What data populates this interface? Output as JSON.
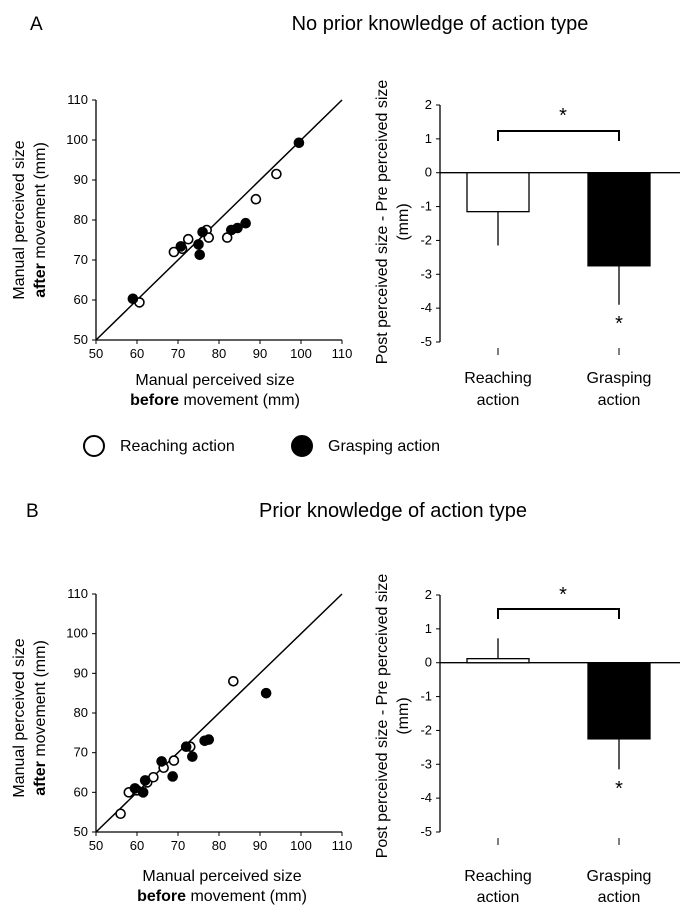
{
  "panels": [
    {
      "letter": "A",
      "title": "No prior knowledge of action type",
      "scatter": {
        "xlabel_line1": "Manual perceived size",
        "xlabel_bold": "before",
        "xlabel_rest": " movement (mm)",
        "ylabel_line1": "Manual perceived size",
        "ylabel_bold": "after",
        "ylabel_rest": " movement (mm)"
      },
      "bars": {
        "ylabel_line1": "Post perceived size - Pre perceived size",
        "ylabel_line2": "(mm)",
        "cat1_line1": "Reaching",
        "cat1_line2": "action",
        "cat2_line1": "Grasping",
        "cat2_line2": "action",
        "sig_bracket": "*",
        "sig_grasp": "*"
      }
    },
    {
      "letter": "B",
      "title": "Prior knowledge of action type",
      "scatter": {
        "xlabel_line1": "Manual perceived size",
        "xlabel_bold": "before",
        "xlabel_rest": " movement (mm)",
        "ylabel_line1": "Manual perceived size",
        "ylabel_bold": "after",
        "ylabel_rest": " movement (mm)"
      },
      "bars": {
        "ylabel_line1": "Post perceived size - Pre perceived size",
        "ylabel_line2": "(mm)",
        "cat1_line1": "Reaching",
        "cat1_line2": "action",
        "cat2_line1": "Grasping",
        "cat2_line2": "action",
        "sig_bracket": "*",
        "sig_grasp": "*"
      }
    }
  ],
  "legend": {
    "reaching": "Reaching action",
    "grasping": "Grasping action"
  },
  "chart_data": [
    {
      "type": "scatter",
      "panel": "A",
      "xlim": [
        50,
        110
      ],
      "ylim": [
        50,
        110
      ],
      "xticks": [
        50,
        60,
        70,
        80,
        90,
        100,
        110
      ],
      "yticks": [
        50,
        60,
        70,
        80,
        90,
        100,
        110
      ],
      "identity_line": true,
      "series": [
        {
          "name": "Reaching action",
          "style": "open",
          "points": [
            [
              60.6,
              59.4
            ],
            [
              69,
              72
            ],
            [
              71,
              72.8
            ],
            [
              72.5,
              75.2
            ],
            [
              77,
              77.5
            ],
            [
              77.5,
              75.6
            ],
            [
              82,
              75.6
            ],
            [
              89,
              85.2
            ],
            [
              94,
              91.5
            ]
          ]
        },
        {
          "name": "Grasping action",
          "style": "filled",
          "points": [
            [
              59,
              60.3
            ],
            [
              70.7,
              73.4
            ],
            [
              75,
              73.9
            ],
            [
              75.3,
              71.3
            ],
            [
              76,
              77
            ],
            [
              83,
              77.5
            ],
            [
              84.5,
              78
            ],
            [
              86.5,
              79.2
            ],
            [
              99.5,
              99.3
            ]
          ]
        }
      ]
    },
    {
      "type": "bar",
      "panel": "A",
      "categories": [
        "Reaching action",
        "Grasping action"
      ],
      "values": [
        -1.15,
        -2.75
      ],
      "errors": [
        1.0,
        1.15
      ],
      "colors": [
        "#ffffff",
        "#000000"
      ],
      "ylim": [
        -5,
        2
      ],
      "yticks": [
        2,
        1,
        0,
        -1,
        -2,
        -3,
        -4,
        -5
      ]
    },
    {
      "type": "scatter",
      "panel": "B",
      "xlim": [
        50,
        110
      ],
      "ylim": [
        50,
        110
      ],
      "xticks": [
        50,
        60,
        70,
        80,
        90,
        100,
        110
      ],
      "yticks": [
        50,
        60,
        70,
        80,
        90,
        100,
        110
      ],
      "identity_line": true,
      "series": [
        {
          "name": "Reaching action",
          "style": "open",
          "points": [
            [
              56,
              54.6
            ],
            [
              58,
              60
            ],
            [
              60,
              60.5
            ],
            [
              62.5,
              62.5
            ],
            [
              64,
              63.8
            ],
            [
              66.5,
              66.2
            ],
            [
              69,
              68
            ],
            [
              73,
              71.5
            ],
            [
              83.5,
              88
            ]
          ]
        },
        {
          "name": "Grasping action",
          "style": "filled",
          "points": [
            [
              59.5,
              61
            ],
            [
              61.5,
              60
            ],
            [
              62,
              63
            ],
            [
              66,
              67.8
            ],
            [
              68.7,
              64
            ],
            [
              72,
              71.5
            ],
            [
              73.5,
              69
            ],
            [
              76.5,
              73
            ],
            [
              77.5,
              73.3
            ],
            [
              91.5,
              85
            ]
          ]
        }
      ]
    },
    {
      "type": "bar",
      "panel": "B",
      "categories": [
        "Reaching action",
        "Grasping action"
      ],
      "values": [
        0.12,
        -2.25
      ],
      "errors": [
        0.6,
        0.9
      ],
      "colors": [
        "#ffffff",
        "#000000"
      ],
      "ylim": [
        -5,
        2
      ],
      "yticks": [
        2,
        1,
        0,
        -1,
        -2,
        -3,
        -4,
        -5
      ]
    }
  ]
}
